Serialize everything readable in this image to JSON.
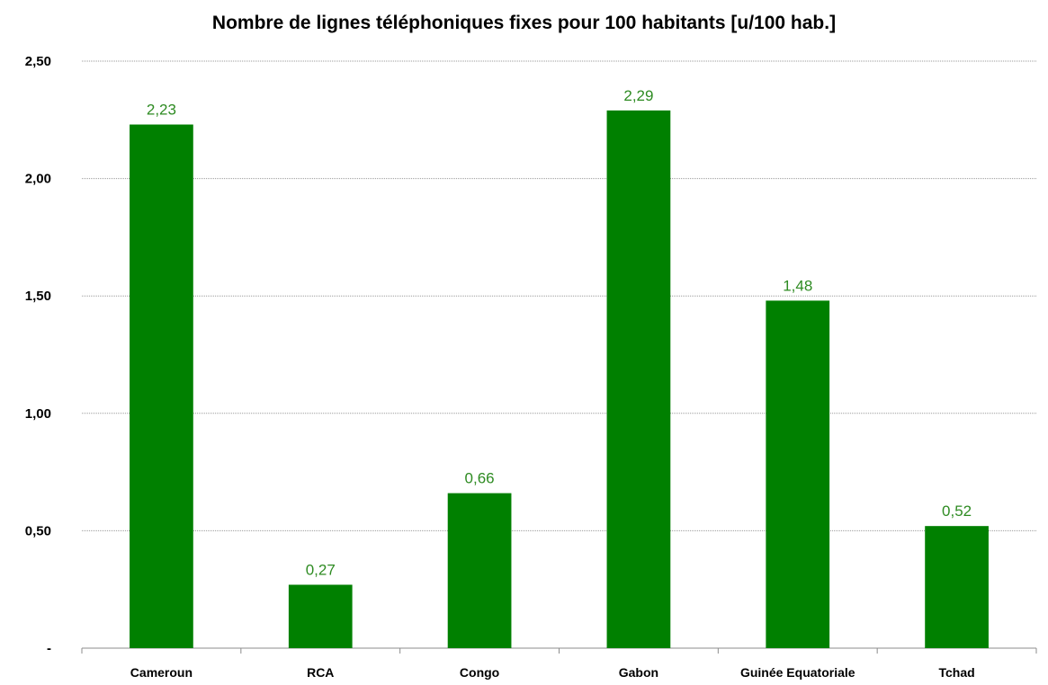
{
  "chart_data": {
    "type": "bar",
    "title": "Nombre de lignes téléphoniques fixes pour 100 habitants [u/100 hab.]",
    "categories": [
      "Cameroun",
      "RCA",
      "Congo",
      "Gabon",
      "Guinée Equatoriale",
      "Tchad"
    ],
    "values": [
      2.23,
      0.27,
      0.66,
      2.29,
      1.48,
      0.52
    ],
    "value_labels": [
      "2,23",
      "0,27",
      "0,66",
      "2,29",
      "1,48",
      "0,52"
    ],
    "xlabel": "",
    "ylabel": "",
    "ylim": [
      0,
      2.5
    ],
    "yticks": [
      0,
      0.5,
      1.0,
      1.5,
      2.0,
      2.5
    ],
    "ytick_labels": [
      "-",
      "0,50",
      "1,00",
      "1,50",
      "2,00",
      "2,50"
    ],
    "grid": true,
    "legend": "none",
    "colors": {
      "bar": "#008000",
      "data_label": "#2e8b22"
    }
  }
}
